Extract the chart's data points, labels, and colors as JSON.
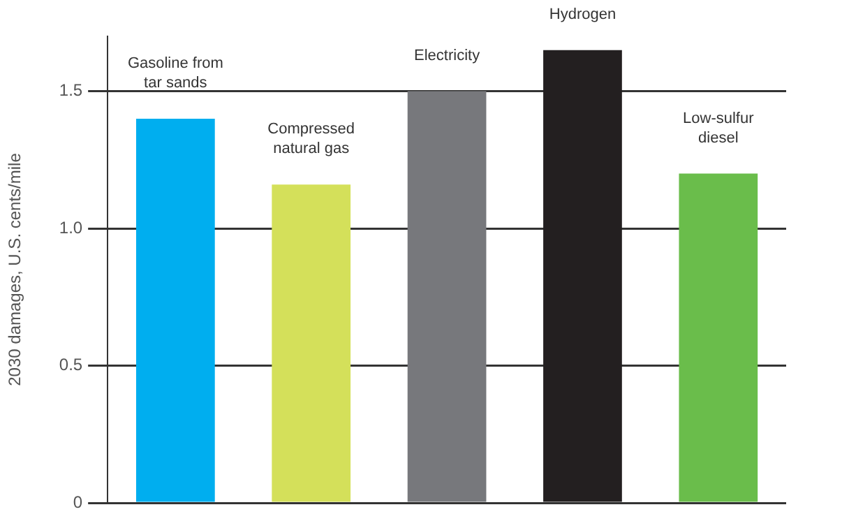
{
  "chart_data": {
    "type": "bar",
    "ylabel": "2030 damages, U.S. cents/mile",
    "categories": [
      "Gasoline from\ntar sands",
      "Compressed\nnatural gas",
      "Electricity",
      "Hydrogen",
      "Low-sulfur\ndiesel"
    ],
    "values": [
      1.4,
      1.16,
      1.5,
      1.65,
      1.2
    ],
    "colors": [
      "#00aeef",
      "#d4e05a",
      "#77787c",
      "#231f20",
      "#6abd4b"
    ],
    "ylim": [
      0,
      1.7
    ],
    "yticks": [
      0,
      0.5,
      {
        "value": 1,
        "label": "1.0"
      },
      1.5
    ],
    "grid": "y"
  }
}
